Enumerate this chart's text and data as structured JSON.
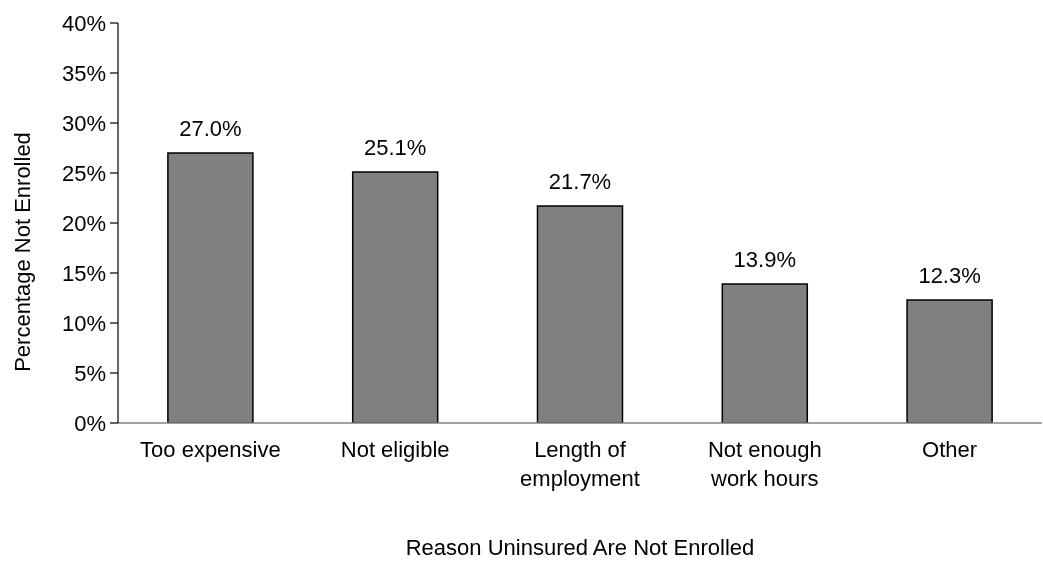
{
  "chart_data": {
    "type": "bar",
    "xlabel": "Reason Uninsured Are Not Enrolled",
    "ylabel": "Percentage Not Enrolled",
    "categories": [
      "Too expensive",
      "Not eligible",
      "Length of employment",
      "Not enough work hours",
      "Other"
    ],
    "values": [
      27.0,
      25.1,
      21.7,
      13.9,
      12.3
    ],
    "value_labels": [
      "27.0%",
      "25.1%",
      "21.7%",
      "13.9%",
      "12.3%"
    ],
    "color": "#808080",
    "ylim": [
      0,
      40
    ],
    "yticks": [
      {
        "value": 0,
        "label": "0%"
      },
      {
        "value": 5,
        "label": "5%"
      },
      {
        "value": 10,
        "label": "10%"
      },
      {
        "value": 15,
        "label": "15%"
      },
      {
        "value": 20,
        "label": "20%"
      },
      {
        "value": 25,
        "label": "25%"
      },
      {
        "value": 30,
        "label": "30%"
      },
      {
        "value": 35,
        "label": "35%"
      },
      {
        "value": 40,
        "label": "40%"
      }
    ]
  }
}
